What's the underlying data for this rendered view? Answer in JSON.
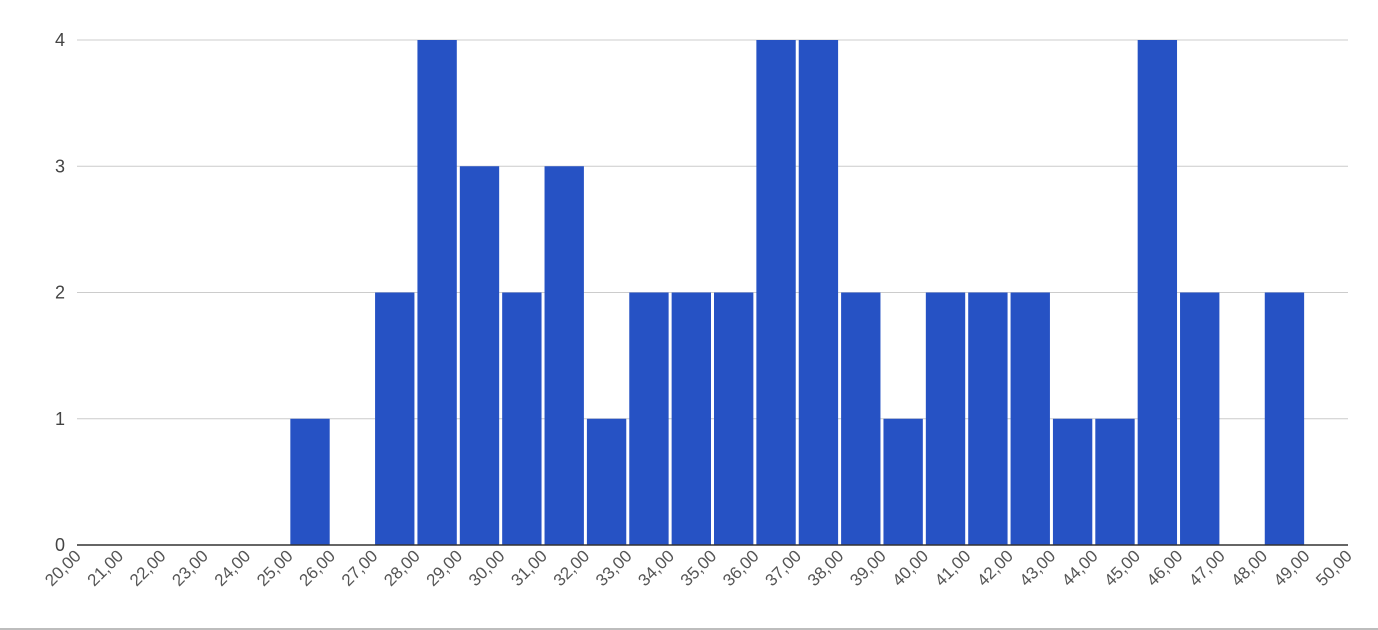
{
  "chart_data": {
    "type": "bar",
    "bin_edges": [
      "20,00",
      "21,00",
      "22,00",
      "23,00",
      "24,00",
      "25,00",
      "26,00",
      "27,00",
      "28,00",
      "29,00",
      "30,00",
      "31,00",
      "32,00",
      "33,00",
      "34,00",
      "35,00",
      "36,00",
      "37,00",
      "38,00",
      "39,00",
      "40,00",
      "41,00",
      "42,00",
      "43,00",
      "44,00",
      "45,00",
      "46,00",
      "47,00",
      "48,00",
      "49,00",
      "50,00"
    ],
    "values": [
      0,
      0,
      0,
      0,
      0,
      1,
      0,
      2,
      4,
      3,
      2,
      3,
      1,
      2,
      2,
      2,
      4,
      4,
      2,
      1,
      2,
      2,
      2,
      1,
      1,
      4,
      2,
      0,
      2,
      0
    ],
    "y_ticks": [
      "0",
      "1",
      "2",
      "3",
      "4"
    ],
    "ylim": [
      0,
      4
    ],
    "x_range": [
      20,
      50
    ],
    "grid": true,
    "legend": "none",
    "colors": {
      "bar": "#2652c4",
      "grid": "#cccccc",
      "axis": "#333333"
    }
  }
}
